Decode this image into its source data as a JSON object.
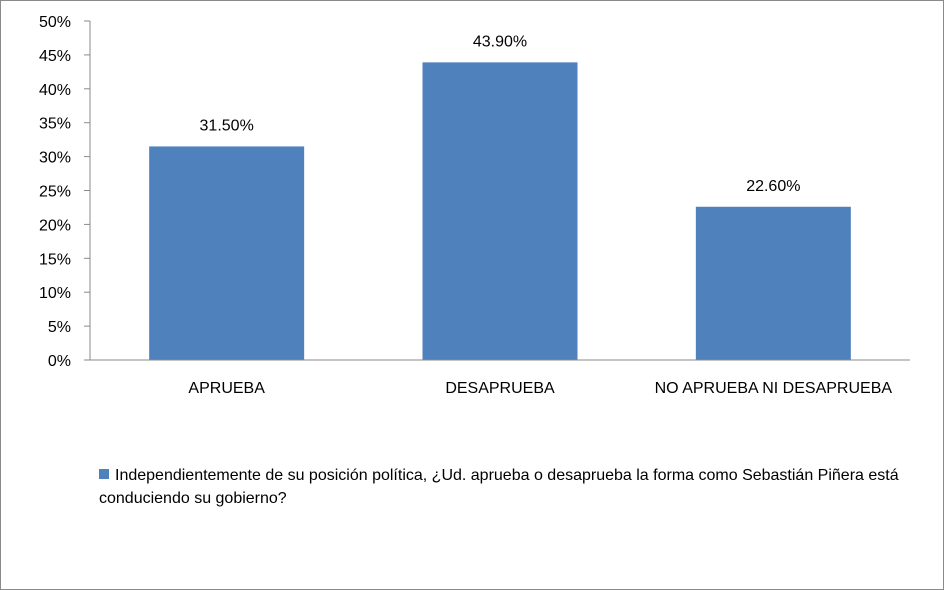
{
  "chart_data": {
    "type": "bar",
    "categories": [
      "APRUEBA",
      "DESAPRUEBA",
      "NO APRUEBA NI DESAPRUEBA"
    ],
    "series": [
      {
        "name": "Independientemente de su posición política, ¿Ud. aprueba o desaprueba la forma como Sebastián Piñera está conduciendo su gobierno?",
        "values": [
          31.5,
          43.9,
          22.6
        ],
        "data_labels": [
          "31.50%",
          "43.90%",
          "22.60%"
        ],
        "color": "#4f81bd"
      }
    ],
    "ylim": [
      0,
      50
    ],
    "yticks": [
      0,
      5,
      10,
      15,
      20,
      25,
      30,
      35,
      40,
      45,
      50
    ],
    "ytick_labels": [
      "0%",
      "5%",
      "10%",
      "15%",
      "20%",
      "25%",
      "30%",
      "35%",
      "40%",
      "45%",
      "50%"
    ],
    "grid": false,
    "legend_position": "bottom",
    "title": "",
    "xlabel": "",
    "ylabel": ""
  }
}
